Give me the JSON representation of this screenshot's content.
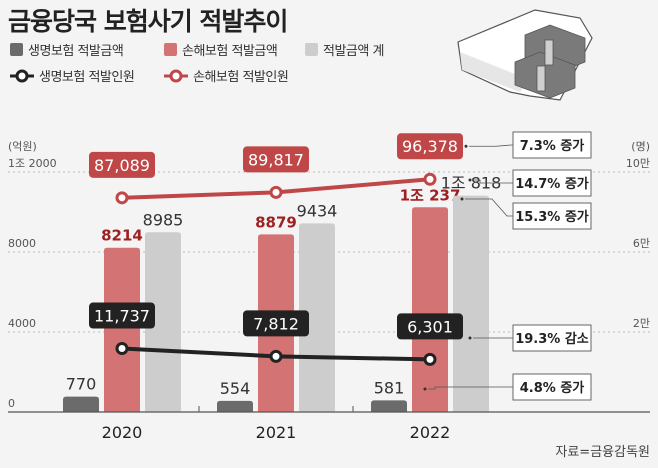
{
  "title": "금융당국 보험사기 적발추이",
  "legend": [
    {
      "label": "생명보험 적발금액",
      "color": "#6b6b6b",
      "kind": "bar"
    },
    {
      "label": "손해보험 적발금액",
      "color": "#d37373",
      "kind": "bar"
    },
    {
      "label": "적발금액 계",
      "color": "#cdcdcd",
      "kind": "bar"
    },
    {
      "label": "생명보험 적발인원",
      "color": "#222222",
      "kind": "line"
    },
    {
      "label": "손해보험 적발인원",
      "color": "#bf4747",
      "kind": "line"
    }
  ],
  "source": "자료=금융감독원",
  "chart_data": {
    "type": "bar",
    "title": "금융당국 보험사기 적발추이",
    "categories": [
      "2020",
      "2021",
      "2022"
    ],
    "left_axis": {
      "unit": "(억원)",
      "ylim": [
        0,
        12000
      ],
      "ticks": [
        0,
        4000,
        8000,
        12000
      ],
      "tick_labels": [
        "0",
        "4000",
        "8000",
        "1조 2000"
      ]
    },
    "right_axis": {
      "unit": "(명)",
      "ylim": [
        0,
        100000
      ],
      "ticks": [
        20000,
        60000,
        100000
      ],
      "tick_labels": [
        "2만",
        "6만",
        "10만"
      ]
    },
    "grid": true,
    "bar_series": [
      {
        "name": "생명보험 적발금액",
        "values": [
          770,
          554,
          581
        ],
        "labels": [
          "770",
          "554",
          "581"
        ],
        "color": "#6b6b6b",
        "label_color": "#333333"
      },
      {
        "name": "손해보험 적발금액",
        "values": [
          8214,
          8879,
          10237
        ],
        "labels": [
          "8214",
          "8879",
          "1조 237"
        ],
        "color": "#d37373",
        "label_color": "#9e2020"
      },
      {
        "name": "적발금액 계",
        "values": [
          8985,
          9434,
          10818
        ],
        "labels": [
          "8985",
          "9434",
          "1조 818"
        ],
        "color": "#cdcdcd",
        "label_color": "#333333"
      }
    ],
    "line_series": [
      {
        "name": "손해보험 적발인원",
        "values": [
          87089,
          89817,
          96378
        ],
        "labels": [
          "87,089",
          "89,817",
          "96,378"
        ],
        "color": "#bf4747"
      },
      {
        "name": "생명보험 적발인원",
        "values": [
          11737,
          7812,
          6301
        ],
        "labels": [
          "11,737",
          "7,812",
          "6,301"
        ],
        "color": "#222222"
      }
    ],
    "annotations": [
      "7.3% 증가",
      "14.7% 증가",
      "15.3% 증가",
      "19.3% 감소",
      "4.8% 증가"
    ]
  }
}
